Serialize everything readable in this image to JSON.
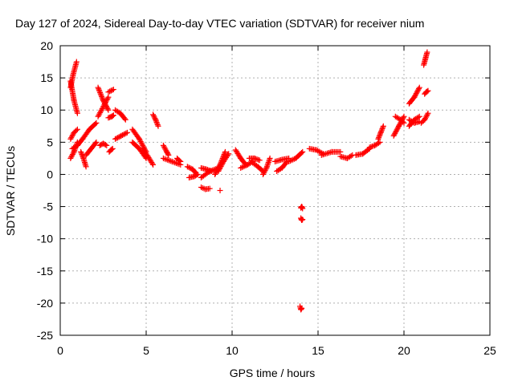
{
  "chart_data": {
    "type": "scatter",
    "title": "Day 127 of 2024, Sidereal Day-to-day VTEC variation (SDTVAR) for receiver nium",
    "xlabel": "GPS time / hours",
    "ylabel": "SDTVAR / TECUs",
    "xlim": [
      0,
      25
    ],
    "ylim": [
      -25,
      20
    ],
    "xticks": [
      0,
      5,
      10,
      15,
      20,
      25
    ],
    "yticks": [
      -25,
      -20,
      -15,
      -10,
      -5,
      0,
      5,
      10,
      15,
      20
    ],
    "grid": true,
    "marker": "plus",
    "color": "#ff0000",
    "segments": [
      {
        "x": [
          0.6,
          0.8,
          1.0
        ],
        "y": [
          14.5,
          11.5,
          9.5
        ]
      },
      {
        "x": [
          0.6,
          0.75,
          0.95
        ],
        "y": [
          13.5,
          15.5,
          17.5
        ]
      },
      {
        "x": [
          0.6,
          0.8,
          1.0
        ],
        "y": [
          2.5,
          3.5,
          5.0
        ]
      },
      {
        "x": [
          0.6,
          0.8,
          1.0
        ],
        "y": [
          5.5,
          6.5,
          7.0
        ]
      },
      {
        "x": [
          0.7,
          1.0,
          1.3
        ],
        "y": [
          4.0,
          4.5,
          5.5
        ]
      },
      {
        "x": [
          1.2,
          1.35,
          1.5
        ],
        "y": [
          3.5,
          2.5,
          1.2
        ]
      },
      {
        "x": [
          1.3,
          1.7,
          2.1
        ],
        "y": [
          5.5,
          7.0,
          8.0
        ]
      },
      {
        "x": [
          1.5,
          1.8,
          2.1
        ],
        "y": [
          3.0,
          4.0,
          5.0
        ]
      },
      {
        "x": [
          2.2,
          2.5,
          2.8
        ],
        "y": [
          13.5,
          11.5,
          10.0
        ]
      },
      {
        "x": [
          2.2,
          2.6,
          2.8
        ],
        "y": [
          9.0,
          11.0,
          12.0
        ]
      },
      {
        "x": [
          2.3,
          2.5,
          2.7
        ],
        "y": [
          4.5,
          4.8,
          4.5
        ]
      },
      {
        "x": [
          2.8,
          2.95,
          3.1
        ],
        "y": [
          12.8,
          13.0,
          13.2
        ]
      },
      {
        "x": [
          2.8,
          3.0,
          3.1
        ],
        "y": [
          8.8,
          9.0,
          9.2
        ]
      },
      {
        "x": [
          2.85,
          2.95,
          3.05
        ],
        "y": [
          3.5,
          3.8,
          4.0
        ]
      },
      {
        "x": [
          3.2,
          3.55,
          3.9
        ],
        "y": [
          5.5,
          6.0,
          6.5
        ]
      },
      {
        "x": [
          3.2,
          3.5,
          3.8
        ],
        "y": [
          10.0,
          9.5,
          8.5
        ]
      },
      {
        "x": [
          4.2,
          4.6,
          5.0
        ],
        "y": [
          7.0,
          5.5,
          3.5
        ]
      },
      {
        "x": [
          4.2,
          4.6,
          5.0
        ],
        "y": [
          5.0,
          4.0,
          2.5
        ]
      },
      {
        "x": [
          4.8,
          5.1,
          5.4
        ],
        "y": [
          4.0,
          2.8,
          1.5
        ]
      },
      {
        "x": [
          5.4,
          5.55,
          5.7
        ],
        "y": [
          9.3,
          8.5,
          7.5
        ]
      },
      {
        "x": [
          6.0,
          6.2,
          6.3
        ],
        "y": [
          4.5,
          3.5,
          3.0
        ]
      },
      {
        "x": [
          6.0,
          6.5,
          7.0
        ],
        "y": [
          2.5,
          2.0,
          1.5
        ]
      },
      {
        "x": [
          6.8,
          6.9,
          7.0
        ],
        "y": [
          2.5,
          2.2,
          2.0
        ]
      },
      {
        "x": [
          7.4,
          7.7,
          7.9
        ],
        "y": [
          1.2,
          0.8,
          0.2
        ]
      },
      {
        "x": [
          7.5,
          7.8,
          8.0
        ],
        "y": [
          -0.5,
          -0.3,
          0.0
        ]
      },
      {
        "x": [
          8.2,
          8.45,
          8.7
        ],
        "y": [
          -2.0,
          -2.3,
          -2.2
        ]
      },
      {
        "x": [
          8.2,
          8.7,
          9.2
        ],
        "y": [
          -0.5,
          0.5,
          1.0
        ]
      },
      {
        "x": [
          8.2,
          8.5,
          8.8
        ],
        "y": [
          1.0,
          0.8,
          0.5
        ]
      },
      {
        "x": [
          9.0,
          9.3,
          9.6
        ],
        "y": [
          0.0,
          1.5,
          3.5
        ]
      },
      {
        "x": [
          9.2,
          9.5,
          9.8
        ],
        "y": [
          0.5,
          2.0,
          3.2
        ]
      },
      {
        "x": [
          9.3
        ],
        "y": [
          -2.5
        ]
      },
      {
        "x": [
          10.2,
          10.5,
          10.8
        ],
        "y": [
          3.8,
          2.5,
          1.5
        ]
      },
      {
        "x": [
          10.5,
          10.9,
          11.2
        ],
        "y": [
          1.0,
          1.5,
          2.0
        ]
      },
      {
        "x": [
          11.0,
          11.3,
          11.6
        ],
        "y": [
          2.5,
          2.5,
          2.2
        ]
      },
      {
        "x": [
          11.2,
          11.5,
          11.8
        ],
        "y": [
          1.8,
          1.2,
          0.5
        ]
      },
      {
        "x": [
          11.8,
          12.0,
          12.2
        ],
        "y": [
          0.0,
          1.0,
          2.5
        ]
      },
      {
        "x": [
          12.6,
          12.9,
          13.2
        ],
        "y": [
          0.5,
          1.0,
          2.0
        ]
      },
      {
        "x": [
          12.5,
          12.9,
          13.3
        ],
        "y": [
          2.0,
          2.3,
          2.5
        ]
      },
      {
        "x": [
          13.3,
          13.7,
          14.1
        ],
        "y": [
          2.0,
          2.5,
          3.5
        ]
      },
      {
        "x": [
          14.0,
          14.05,
          14.1
        ],
        "y": [
          -5.2,
          -5.0,
          -5.3
        ]
      },
      {
        "x": [
          14.0,
          14.05,
          14.1
        ],
        "y": [
          -6.8,
          -7.1,
          -7.0
        ]
      },
      {
        "x": [
          13.95,
          14.0,
          14.05
        ],
        "y": [
          -20.5,
          -21.0,
          -20.8
        ]
      },
      {
        "x": [
          14.5,
          14.9,
          15.3
        ],
        "y": [
          4.0,
          3.8,
          3.2
        ]
      },
      {
        "x": [
          15.2,
          15.8,
          16.3
        ],
        "y": [
          3.0,
          3.5,
          3.5
        ]
      },
      {
        "x": [
          16.3,
          16.7,
          17.0
        ],
        "y": [
          2.8,
          2.5,
          3.0
        ]
      },
      {
        "x": [
          17.2,
          17.6,
          18.0
        ],
        "y": [
          3.0,
          3.2,
          4.0
        ]
      },
      {
        "x": [
          18.0,
          18.3,
          18.6
        ],
        "y": [
          4.2,
          4.5,
          5.0
        ]
      },
      {
        "x": [
          18.5,
          18.65,
          18.8
        ],
        "y": [
          5.5,
          6.5,
          7.5
        ]
      },
      {
        "x": [
          19.4,
          19.7,
          20.0
        ],
        "y": [
          6.0,
          7.5,
          9.0
        ]
      },
      {
        "x": [
          19.5,
          19.8,
          20.0
        ],
        "y": [
          9.0,
          8.5,
          8.0
        ]
      },
      {
        "x": [
          20.3,
          20.6,
          20.9
        ],
        "y": [
          11.0,
          12.0,
          13.5
        ]
      },
      {
        "x": [
          20.3,
          20.6,
          20.9
        ],
        "y": [
          7.5,
          8.5,
          9.0
        ]
      },
      {
        "x": [
          20.3,
          20.6,
          20.9
        ],
        "y": [
          8.5,
          8.0,
          8.2
        ]
      },
      {
        "x": [
          21.0,
          21.2,
          21.4
        ],
        "y": [
          8.0,
          8.5,
          9.5
        ]
      },
      {
        "x": [
          21.2,
          21.3,
          21.4
        ],
        "y": [
          12.5,
          12.8,
          13.0
        ]
      },
      {
        "x": [
          21.15,
          21.25,
          21.35
        ],
        "y": [
          17.0,
          18.0,
          19.0
        ]
      }
    ]
  }
}
